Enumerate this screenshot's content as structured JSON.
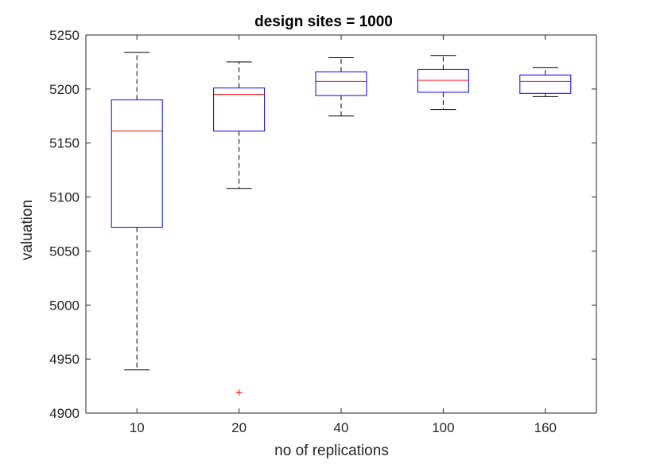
{
  "chart_data": {
    "type": "box",
    "title": "design sites = 1000",
    "xlabel": "no of replications",
    "ylabel": "valuation",
    "categories": [
      "10",
      "20",
      "40",
      "100",
      "160"
    ],
    "ylim": [
      4900,
      5250
    ],
    "yticks": [
      4900,
      4950,
      5000,
      5050,
      5100,
      5150,
      5200,
      5250
    ],
    "grid": false,
    "boxes": [
      {
        "category": "10",
        "whisker_low": 4940,
        "q1": 5072,
        "median": 5161,
        "q3": 5190,
        "whisker_high": 5234,
        "outliers": []
      },
      {
        "category": "20",
        "whisker_low": 5108,
        "q1": 5161,
        "median": 5195,
        "q3": 5201,
        "whisker_high": 5225,
        "outliers": [
          4919
        ]
      },
      {
        "category": "40",
        "whisker_low": 5175,
        "q1": 5194,
        "median": 5207,
        "q3": 5216,
        "whisker_high": 5229,
        "outliers": []
      },
      {
        "category": "100",
        "whisker_low": 5181,
        "q1": 5197,
        "median": 5208,
        "q3": 5218,
        "whisker_high": 5231,
        "outliers": []
      },
      {
        "category": "160",
        "whisker_low": 5193,
        "q1": 5196,
        "median": 5207,
        "q3": 5213,
        "whisker_high": 5220,
        "outliers": []
      }
    ],
    "colors": {
      "box": "#0000ff",
      "median": "#ff0000",
      "whisker": "#000000",
      "outlier": "#ff0000",
      "axes": "#262626"
    }
  }
}
